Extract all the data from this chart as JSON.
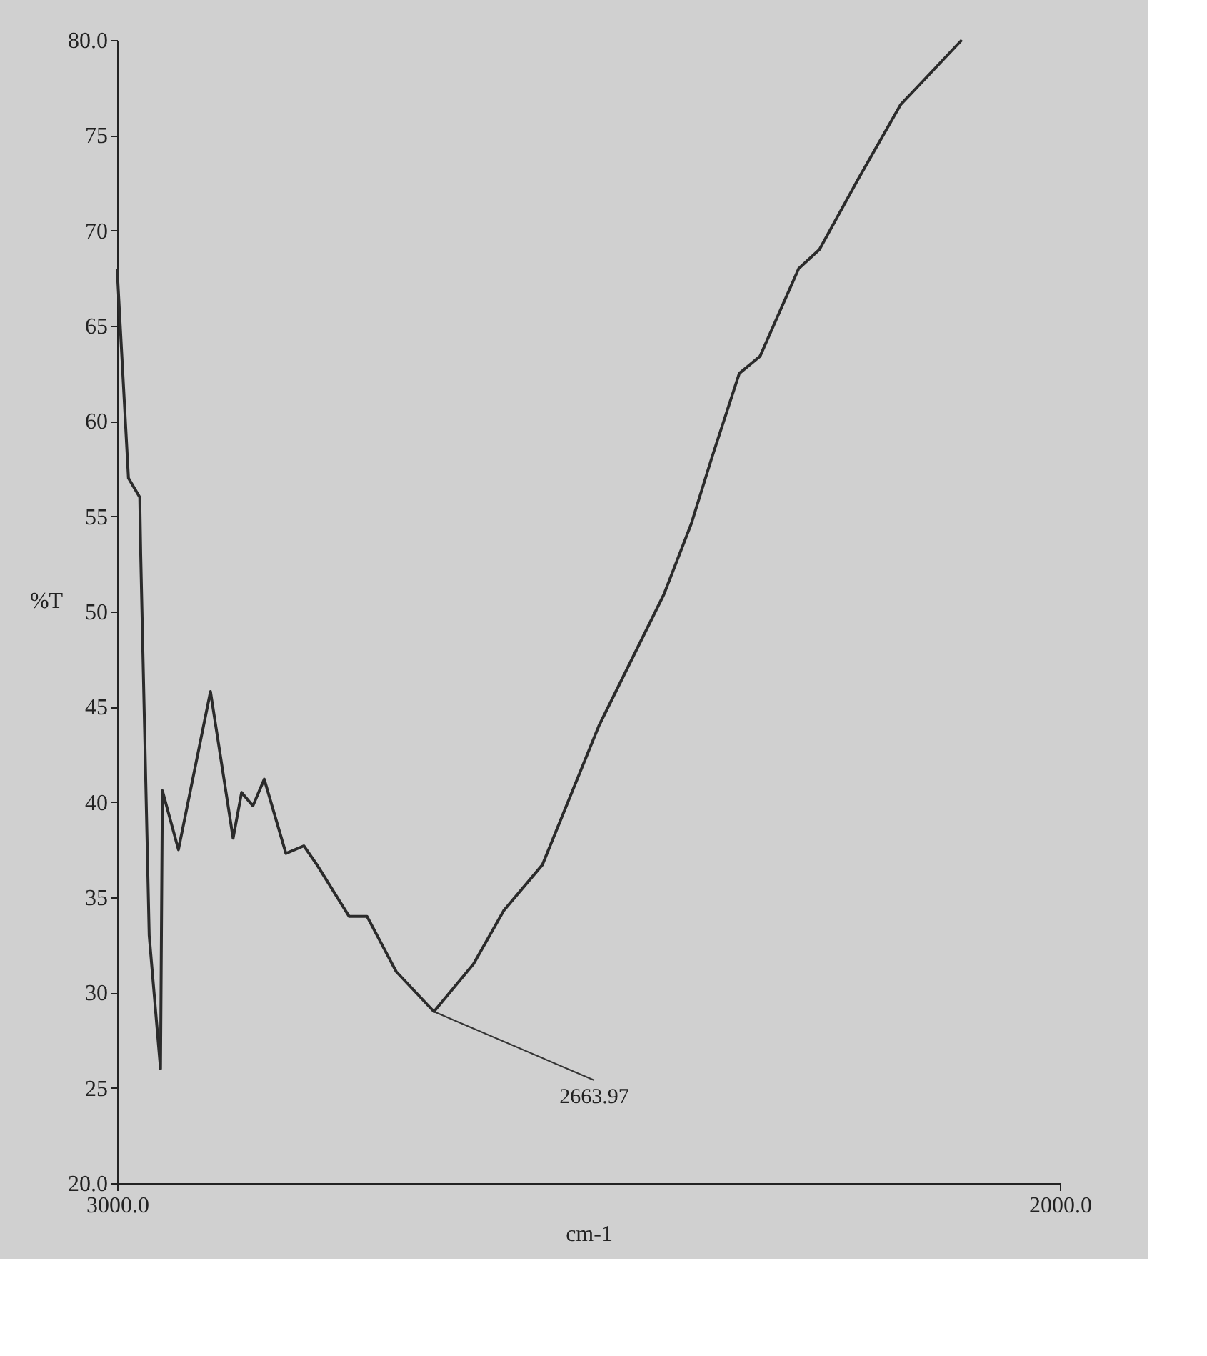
{
  "chart_data": {
    "type": "line",
    "xlabel": "cm-1",
    "ylabel": "%T",
    "x": [
      3000,
      2988,
      2976,
      2975,
      2966,
      2954,
      2952,
      2935,
      2901,
      2877,
      2868,
      2856,
      2844,
      2821,
      2802,
      2788,
      2754,
      2735,
      2704,
      2664,
      2622,
      2590,
      2549,
      2489,
      2453,
      2420,
      2391,
      2369,
      2340,
      2318,
      2277,
      2255,
      2215,
      2169,
      2104
    ],
    "series": [
      {
        "color": "#2b2b2b",
        "values": [
          68,
          57,
          56,
          53,
          33,
          26,
          40.6,
          37.5,
          45.8,
          38.1,
          40.5,
          39.8,
          41.2,
          37.3,
          37.7,
          36.7,
          34,
          34,
          31.1,
          29,
          31.5,
          34.3,
          36.7,
          44,
          47.6,
          50.9,
          54.6,
          58.1,
          62.5,
          63.4,
          68,
          69,
          72.6,
          76.6,
          80
        ]
      }
    ],
    "xlim": [
      3000,
      2000
    ],
    "xticks": [
      {
        "value": 3000,
        "label": "3000.0"
      },
      {
        "value": 2000,
        "label": "2000.0"
      }
    ],
    "ylim": [
      20,
      80
    ],
    "yticks": [
      {
        "value": 20,
        "label": "20.0"
      },
      25,
      30,
      35,
      40,
      45,
      50,
      55,
      60,
      65,
      70,
      75,
      {
        "value": 80,
        "label": "80.0"
      }
    ],
    "annotations": [
      {
        "text": "2663.97",
        "x": 2664,
        "y": 29
      }
    ],
    "grid": false,
    "marker": "none",
    "line_style": "solid"
  }
}
